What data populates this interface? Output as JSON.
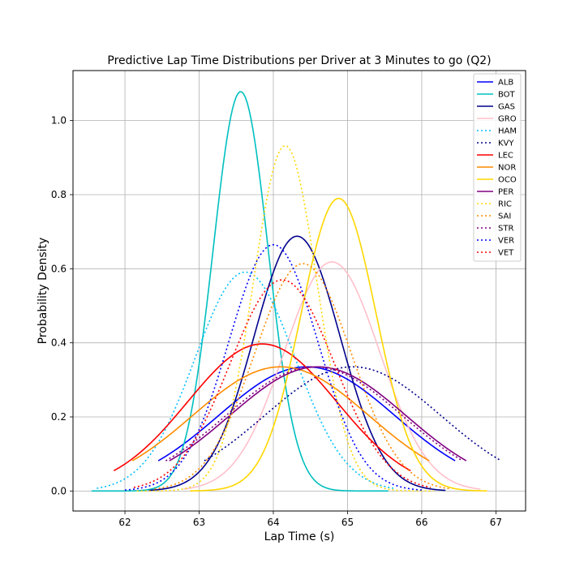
{
  "chart_data": {
    "type": "line",
    "title": "Predictive Lap Time Distributions per Driver at 3 Minutes to go (Q2)",
    "xlabel": "Lap Time (s)",
    "ylabel": "Probability Density",
    "xlim": [
      61.3,
      67.4
    ],
    "ylim": [
      -0.054,
      1.135
    ],
    "xticks": [
      62,
      63,
      64,
      65,
      66,
      67
    ],
    "yticks": [
      0.0,
      0.2,
      0.4,
      0.6,
      0.8,
      1.0
    ],
    "grid": true,
    "legend_position": "top-right",
    "series": [
      {
        "name": "ALB",
        "color": "#0000ff",
        "style": "solid",
        "mean": 64.45,
        "sd": 1.19,
        "range": [
          62.45,
          66.45
        ]
      },
      {
        "name": "BOT",
        "color": "#00bfbf",
        "style": "solid",
        "mean": 63.56,
        "sd": 0.37,
        "range": [
          61.55,
          65.55
        ]
      },
      {
        "name": "GAS",
        "color": "#00008b",
        "style": "solid",
        "mean": 64.32,
        "sd": 0.58,
        "range": [
          62.32,
          66.32
        ]
      },
      {
        "name": "GRO",
        "color": "#ffc0cb",
        "style": "solid",
        "mean": 64.79,
        "sd": 0.645,
        "range": [
          62.79,
          66.79
        ]
      },
      {
        "name": "HAM",
        "color": "#00bfff",
        "style": "dotted",
        "mean": 63.62,
        "sd": 0.675,
        "range": [
          61.62,
          65.62
        ]
      },
      {
        "name": "KVY",
        "color": "#00008b",
        "style": "dotted",
        "mean": 65.07,
        "sd": 1.19,
        "range": [
          63.07,
          67.07
        ]
      },
      {
        "name": "LEC",
        "color": "#ff0000",
        "style": "solid",
        "mean": 63.85,
        "sd": 1.005,
        "range": [
          61.85,
          65.85
        ]
      },
      {
        "name": "NOR",
        "color": "#ff8c00",
        "style": "solid",
        "mean": 64.1,
        "sd": 1.19,
        "range": [
          62.1,
          66.1
        ]
      },
      {
        "name": "OCO",
        "color": "#ffd700",
        "style": "solid",
        "mean": 64.88,
        "sd": 0.505,
        "range": [
          62.88,
          66.88
        ]
      },
      {
        "name": "PER",
        "color": "#800080",
        "style": "solid",
        "mean": 64.6,
        "sd": 1.19,
        "range": [
          62.6,
          66.6
        ]
      },
      {
        "name": "RIC",
        "color": "#ffd700",
        "style": "dotted",
        "mean": 64.16,
        "sd": 0.428,
        "range": [
          62.16,
          66.16
        ]
      },
      {
        "name": "SAI",
        "color": "#ff8c00",
        "style": "dotted",
        "mean": 64.4,
        "sd": 0.65,
        "range": [
          62.4,
          66.4
        ]
      },
      {
        "name": "STR",
        "color": "#800080",
        "style": "dotted",
        "mean": 64.55,
        "sd": 1.19,
        "range": [
          62.55,
          66.55
        ]
      },
      {
        "name": "VER",
        "color": "#0000ff",
        "style": "dotted",
        "mean": 64.0,
        "sd": 0.6,
        "range": [
          62.0,
          66.0
        ]
      },
      {
        "name": "VET",
        "color": "#ff0000",
        "style": "dotted",
        "mean": 64.12,
        "sd": 0.7,
        "range": [
          62.12,
          66.12
        ]
      }
    ]
  }
}
